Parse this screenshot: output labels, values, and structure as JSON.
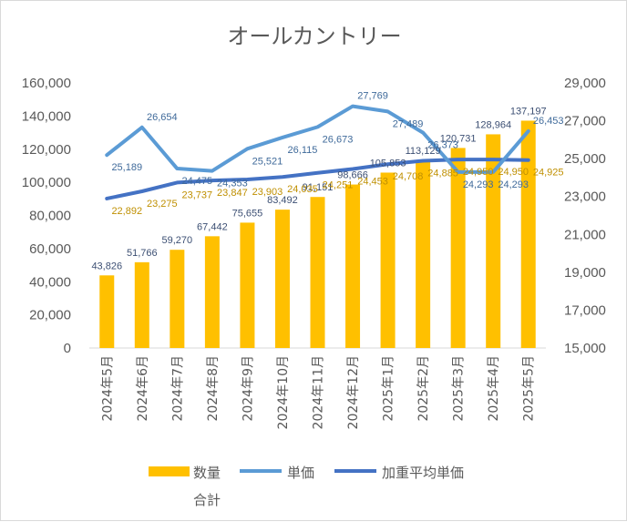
{
  "chart_data": {
    "type": "bar",
    "title": "オールカントリー",
    "categories": [
      "2024年5月",
      "2024年6月",
      "2024年7月",
      "2024年8月",
      "2024年9月",
      "2024年10月",
      "2024年11月",
      "2024年12月",
      "2025年1月",
      "2025年2月",
      "2025年3月",
      "2025年4月",
      "2025年5月"
    ],
    "series": [
      {
        "name": "数量\n合計",
        "type": "bar",
        "axis": "left",
        "color": "#ffc000",
        "values": [
          43826,
          51766,
          59270,
          67442,
          75655,
          83492,
          91151,
          98666,
          105853,
          113129,
          120731,
          128964,
          137197
        ],
        "labels": [
          "43,826",
          "51,766",
          "59,270",
          "67,442",
          "75,655",
          "83,492",
          "91,151",
          "98,666",
          "105,853",
          "113,129",
          "120,731",
          "128,964",
          "137,197"
        ]
      },
      {
        "name": "単価",
        "type": "line",
        "axis": "right",
        "color": "#5b9bd5",
        "values": [
          25189,
          26654,
          24475,
          24353,
          25521,
          26115,
          26673,
          27769,
          27489,
          26373,
          24293,
          24293,
          26453
        ],
        "labels": [
          "25,189",
          "26,654",
          "24,475",
          "24,353",
          "25,521",
          "26,115",
          "26,673",
          "27,769",
          "27,489",
          "26,373",
          "24,293",
          "24,293",
          "26,453"
        ]
      },
      {
        "name": "加重平均単価",
        "type": "line",
        "axis": "right",
        "color": "#4472c4",
        "values": [
          22892,
          23275,
          23737,
          23847,
          23903,
          24035,
          24251,
          24453,
          24708,
          24885,
          24950,
          24950,
          24925
        ],
        "labels": [
          "22,892",
          "23,275",
          "23,737",
          "23,847",
          "23,903",
          "24,035",
          "24,251",
          "24,453",
          "24,708",
          "24,885",
          "24,950",
          "24,950",
          "24,925"
        ]
      }
    ],
    "y_left": {
      "min": 0,
      "max": 160000,
      "step": 20000,
      "ticks": [
        "0",
        "20,000",
        "40,000",
        "60,000",
        "80,000",
        "100,000",
        "120,000",
        "140,000",
        "160,000"
      ]
    },
    "y_right": {
      "min": 15000,
      "max": 29000,
      "step": 2000,
      "ticks": [
        "15,000",
        "17,000",
        "19,000",
        "21,000",
        "23,000",
        "25,000",
        "27,000",
        "29,000"
      ]
    },
    "legend": {
      "position": "bottom",
      "items": [
        {
          "label": "数量",
          "sublabel": "合計",
          "kind": "bar",
          "color": "#ffc000"
        },
        {
          "label": "単価",
          "kind": "line",
          "color": "#5b9bd5"
        },
        {
          "label": "加重平均単価",
          "kind": "line",
          "color": "#4472c4"
        }
      ]
    },
    "grid": false
  }
}
